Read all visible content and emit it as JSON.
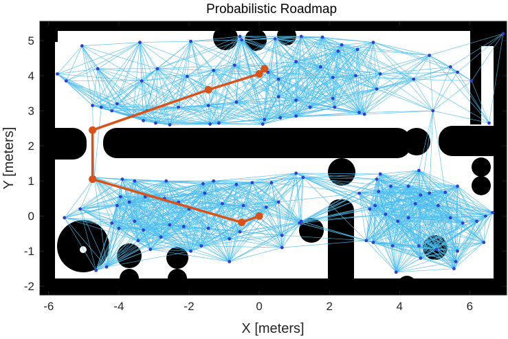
{
  "chart_data": {
    "type": "scatter",
    "title": "Probabilistic Roadmap",
    "xlabel": "X [meters]",
    "ylabel": "Y [meters]",
    "xlim": [
      -6.25,
      7.05
    ],
    "ylim": [
      -2.25,
      5.55
    ],
    "xticks": [
      -6,
      -4,
      -2,
      0,
      2,
      4,
      6
    ],
    "yticks": [
      -2,
      -1,
      0,
      1,
      2,
      3,
      4,
      5
    ],
    "grid": false,
    "colors": {
      "edges": "#4dbeee",
      "nodes": "#2f3fd1",
      "path": "#d95319",
      "obstacles": "#000000"
    },
    "nodes": [
      [
        -5.05,
        4.85
      ],
      [
        -3.4,
        4.95
      ],
      [
        -1.95,
        4.98
      ],
      [
        -0.55,
        5.12
      ],
      [
        -0.5,
        5.02
      ],
      [
        0.45,
        5.05
      ],
      [
        1.2,
        5.12
      ],
      [
        1.8,
        5.1
      ],
      [
        2.35,
        4.88
      ],
      [
        2.25,
        4.7
      ],
      [
        2.8,
        4.75
      ],
      [
        3.25,
        4.95
      ],
      [
        4.85,
        4.58
      ],
      [
        -5.75,
        4.05
      ],
      [
        -5.5,
        3.85
      ],
      [
        -4.6,
        4.2
      ],
      [
        -3.35,
        3.85
      ],
      [
        -2.9,
        4.2
      ],
      [
        -2.05,
        3.98
      ],
      [
        -1.3,
        4.15
      ],
      [
        -0.7,
        4.3
      ],
      [
        0.25,
        4.1
      ],
      [
        0.55,
        3.9
      ],
      [
        1.05,
        4.4
      ],
      [
        1.75,
        4.25
      ],
      [
        2.1,
        3.95
      ],
      [
        2.75,
        4.0
      ],
      [
        3.45,
        4.05
      ],
      [
        4.4,
        3.9
      ],
      [
        5.45,
        4.25
      ],
      [
        5.65,
        4.1
      ],
      [
        6.05,
        3.85
      ],
      [
        -4.75,
        3.15
      ],
      [
        -4.5,
        3.1
      ],
      [
        -4.05,
        3.2
      ],
      [
        -4.2,
        3.0
      ],
      [
        -3.6,
        2.85
      ],
      [
        -3.2,
        3.0
      ],
      [
        -2.3,
        3.1
      ],
      [
        -1.45,
        3.15
      ],
      [
        -0.65,
        3.25
      ],
      [
        0.55,
        3.4
      ],
      [
        1.05,
        3.3
      ],
      [
        1.45,
        3.1
      ],
      [
        2.1,
        3.35
      ],
      [
        2.15,
        3.1
      ],
      [
        2.85,
        2.95
      ],
      [
        3.35,
        3.62
      ],
      [
        4.95,
        3.0
      ],
      [
        6.55,
        2.65
      ],
      [
        -3.3,
        2.72
      ],
      [
        -2.95,
        2.65
      ],
      [
        -2.55,
        2.6
      ],
      [
        -1.4,
        2.62
      ],
      [
        -1.15,
        2.65
      ],
      [
        0.1,
        2.62
      ],
      [
        0.15,
        2.75
      ],
      [
        0.6,
        2.8
      ],
      [
        1.05,
        2.85
      ],
      [
        3.0,
        2.9
      ],
      [
        -4.7,
        1.1
      ],
      [
        -3.9,
        1.05
      ],
      [
        -3.55,
        1.0
      ],
      [
        -2.65,
        1.0
      ],
      [
        -1.6,
        0.92
      ],
      [
        -1.3,
        1.0
      ],
      [
        -0.65,
        0.9
      ],
      [
        -0.2,
        0.95
      ],
      [
        0.35,
        0.95
      ],
      [
        1.05,
        1.22
      ],
      [
        1.25,
        1.1
      ],
      [
        2.85,
        0.65
      ],
      [
        3.4,
        0.7
      ],
      [
        3.75,
        0.85
      ],
      [
        3.35,
        1.05
      ],
      [
        4.55,
        1.3
      ],
      [
        3.45,
        1.2
      ],
      [
        4.25,
        0.85
      ],
      [
        4.6,
        0.6
      ],
      [
        4.85,
        0.65
      ],
      [
        5.3,
        0.68
      ],
      [
        5.65,
        0.85
      ],
      [
        -5.1,
        0.2
      ],
      [
        -5.55,
        -0.05
      ],
      [
        -4.05,
        0.3
      ],
      [
        -3.95,
        0.55
      ],
      [
        -3.7,
        0.4
      ],
      [
        -3.25,
        0.55
      ],
      [
        -2.7,
        0.5
      ],
      [
        -2.3,
        0.4
      ],
      [
        -2.0,
        0.2
      ],
      [
        -1.55,
        0.65
      ],
      [
        -1.05,
        0.35
      ],
      [
        -0.45,
        0.3
      ],
      [
        0.2,
        0.25
      ],
      [
        0.55,
        0.4
      ],
      [
        -4.2,
        -0.2
      ],
      [
        -4.0,
        -0.35
      ],
      [
        -3.55,
        -0.15
      ],
      [
        -3.3,
        -0.4
      ],
      [
        -2.55,
        -0.25
      ],
      [
        -2.15,
        -0.3
      ],
      [
        -1.45,
        -0.35
      ],
      [
        -0.55,
        -0.45
      ],
      [
        0.65,
        -0.55
      ],
      [
        1.2,
        -0.15
      ],
      [
        1.15,
        -0.2
      ],
      [
        3.15,
        0.2
      ],
      [
        3.3,
        0.3
      ],
      [
        3.6,
        0.05
      ],
      [
        3.95,
        -0.15
      ],
      [
        4.25,
        -0.05
      ],
      [
        4.45,
        0.35
      ],
      [
        5.1,
        0.3
      ],
      [
        5.45,
        -0.05
      ],
      [
        5.8,
        -0.2
      ],
      [
        6.2,
        -0.15
      ],
      [
        6.45,
        0.0
      ],
      [
        6.65,
        0.1
      ],
      [
        -3.45,
        -0.7
      ],
      [
        -2.8,
        -0.6
      ],
      [
        -1.65,
        -0.85
      ],
      [
        -0.85,
        -0.65
      ],
      [
        0.65,
        -0.9
      ],
      [
        3.05,
        -0.7
      ],
      [
        3.25,
        -0.75
      ],
      [
        3.8,
        -0.85
      ],
      [
        4.55,
        -0.85
      ],
      [
        5.05,
        -0.95
      ],
      [
        5.65,
        -1.0
      ],
      [
        6.4,
        -0.75
      ],
      [
        -3.1,
        -0.95
      ],
      [
        -1.95,
        -1.0
      ],
      [
        -0.85,
        -1.3
      ],
      [
        4.6,
        -1.2
      ],
      [
        5.6,
        -1.3
      ],
      [
        -4.35,
        -1.45
      ],
      [
        -4.65,
        -1.55
      ],
      [
        3.9,
        -1.6
      ],
      [
        5.55,
        -1.5
      ],
      [
        6.95,
        5.2
      ]
    ],
    "path": [
      [
        0.15,
        4.2
      ],
      [
        0.0,
        4.05
      ],
      [
        -1.45,
        3.6
      ],
      [
        -4.75,
        2.45
      ],
      [
        -4.75,
        1.05
      ],
      [
        -0.5,
        -0.18
      ],
      [
        0.0,
        0.0
      ]
    ]
  }
}
